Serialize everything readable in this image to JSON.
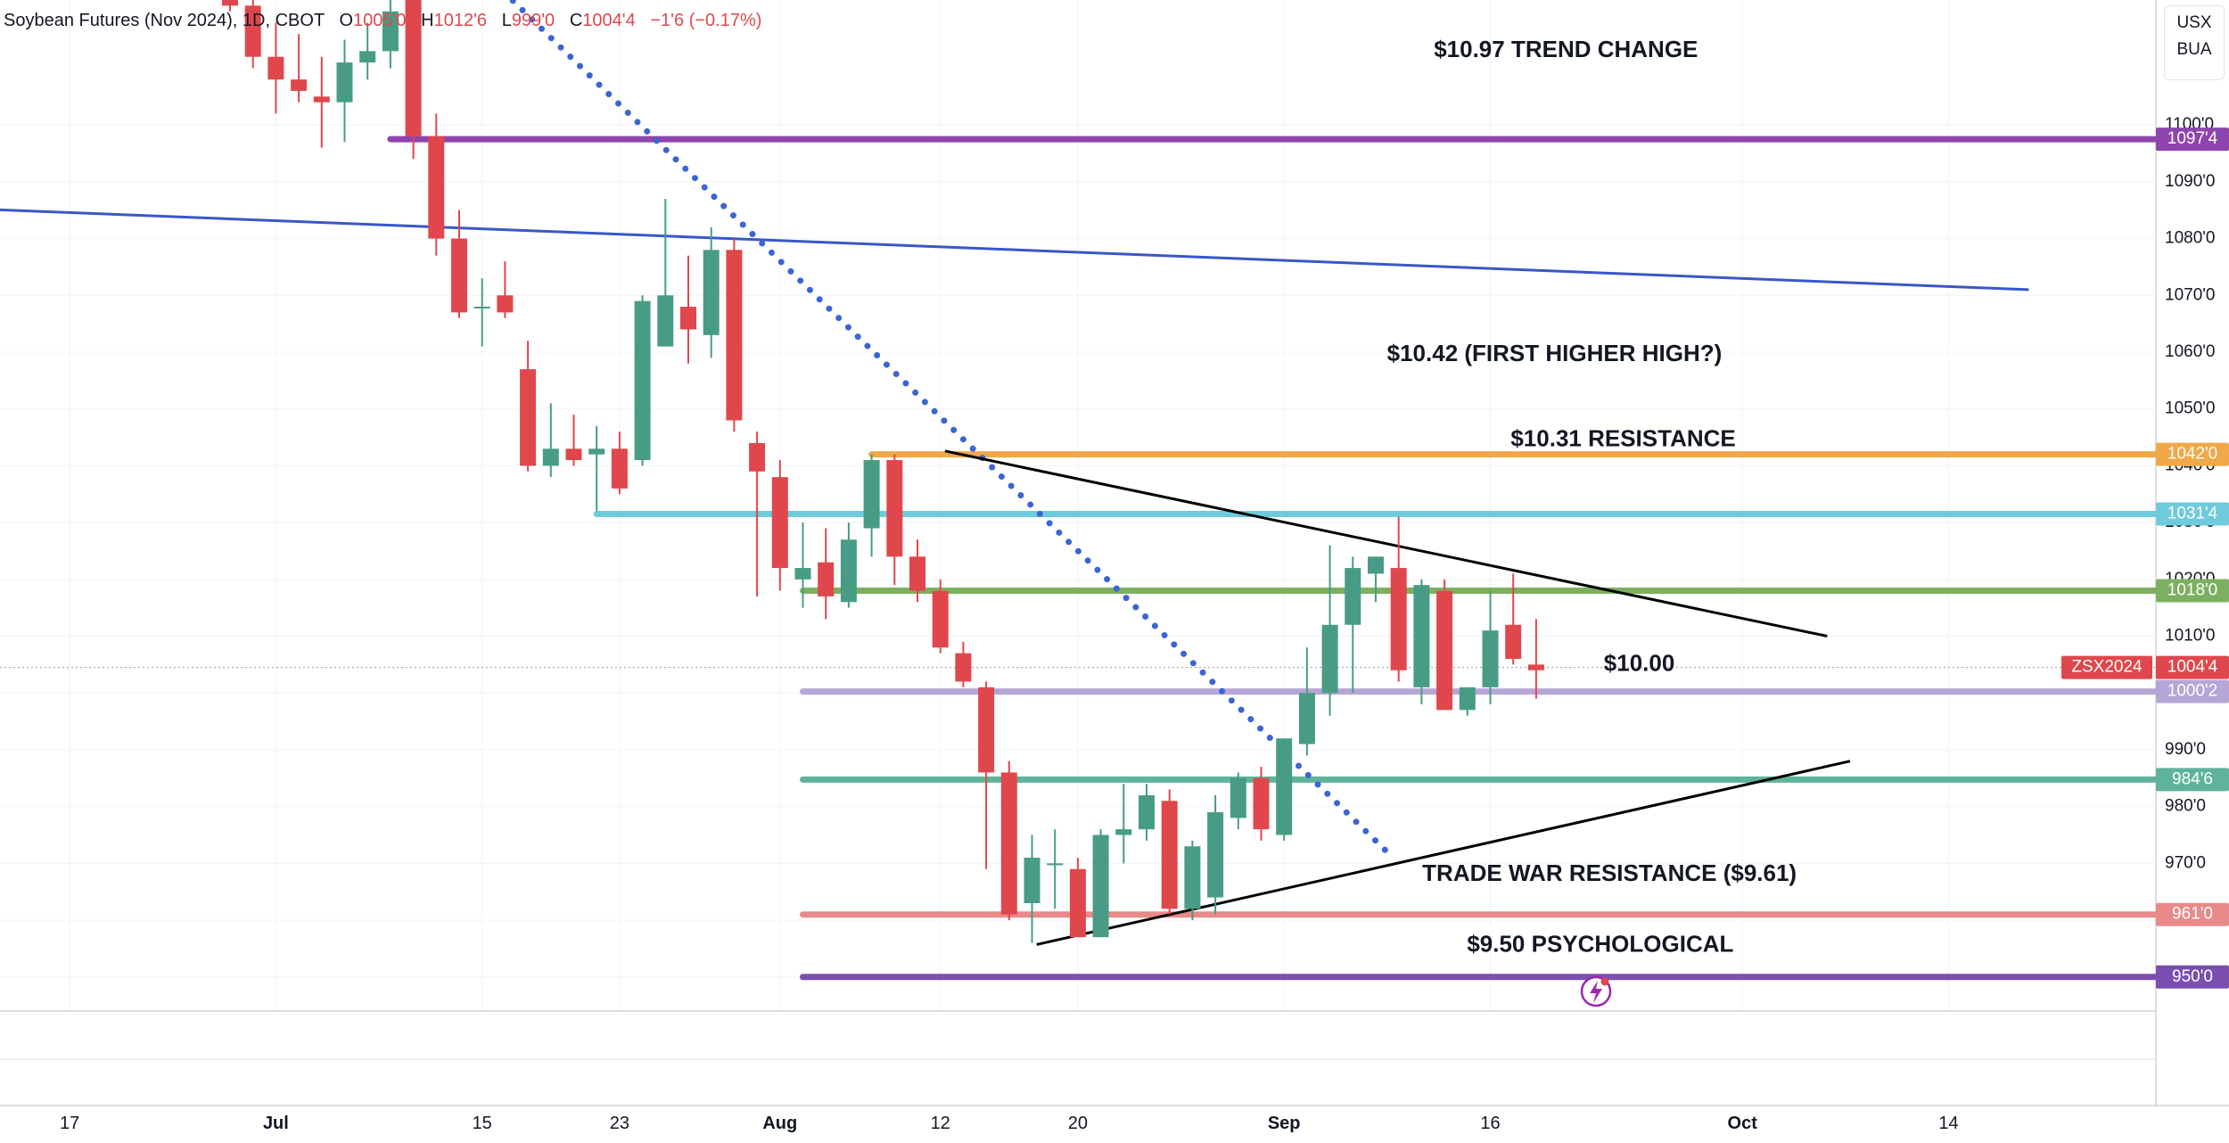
{
  "header": {
    "symbol": "Soybean Futures (Nov 2024), 1D, CBOT",
    "o_label": "O",
    "o_value": "1005'0",
    "h_label": "H",
    "h_value": "1012'6",
    "l_label": "L",
    "l_value": "999'0",
    "c_label": "C",
    "c_value": "1004'4",
    "change": "−1'6 (−0.17%)"
  },
  "top_right": {
    "currency": "USX",
    "unit": "BUA"
  },
  "colors": {
    "up": "#489c85",
    "down": "#e0474c",
    "purple_trend": "#8e44ad",
    "blue_line": "#3858c8",
    "dotted": "#3b64d4",
    "orange": "#f0a848",
    "cyan": "#6ecbdc",
    "green": "#7cb060",
    "lavender": "#b6a6d8",
    "teal": "#5fb39a",
    "salmon": "#e88a8a",
    "violet": "#7a4fb0"
  },
  "chart_data": {
    "type": "candlestick",
    "y_axis": {
      "range": [
        944,
        1122
      ],
      "ticks": [
        "950'0",
        "960'0",
        "970'0",
        "980'0",
        "990'0",
        "1000'0",
        "1010'0",
        "1020'0",
        "1030'0",
        "1040'0",
        "1050'0",
        "1060'0",
        "1070'0",
        "1080'0",
        "1090'0",
        "1100'0"
      ],
      "tick_values": [
        950,
        960,
        970,
        980,
        990,
        1000,
        1010,
        1020,
        1030,
        1040,
        1050,
        1060,
        1070,
        1080,
        1090,
        1100
      ]
    },
    "x_axis": {
      "labels": [
        "17",
        "Jul",
        "15",
        "23",
        "Aug",
        "12",
        "20",
        "Sep",
        "16",
        "Oct",
        "14"
      ],
      "label_index": [
        -7,
        2,
        11,
        17,
        24,
        31,
        37,
        46,
        55,
        66,
        75
      ]
    },
    "candles": [
      {
        "o": 1130,
        "h": 1132,
        "l": 1120,
        "c": 1121
      },
      {
        "o": 1121,
        "h": 1125,
        "l": 1110,
        "c": 1112
      },
      {
        "o": 1112,
        "h": 1118,
        "l": 1102,
        "c": 1108
      },
      {
        "o": 1108,
        "h": 1116,
        "l": 1104,
        "c": 1106
      },
      {
        "o": 1105,
        "h": 1112,
        "l": 1096,
        "c": 1104
      },
      {
        "o": 1104,
        "h": 1115,
        "l": 1097,
        "c": 1111
      },
      {
        "o": 1111,
        "h": 1118,
        "l": 1108,
        "c": 1113
      },
      {
        "o": 1113,
        "h": 1140,
        "l": 1110,
        "c": 1120
      },
      {
        "o": 1125,
        "h": 1135,
        "l": 1094,
        "c": 1098
      },
      {
        "o": 1098,
        "h": 1102,
        "l": 1077,
        "c": 1080
      },
      {
        "o": 1080,
        "h": 1085,
        "l": 1066,
        "c": 1067
      },
      {
        "o": 1068,
        "h": 1073,
        "l": 1061,
        "c": 1068
      },
      {
        "o": 1070,
        "h": 1076,
        "l": 1066,
        "c": 1067
      },
      {
        "o": 1057,
        "h": 1062,
        "l": 1039,
        "c": 1040
      },
      {
        "o": 1040,
        "h": 1051,
        "l": 1038,
        "c": 1043
      },
      {
        "o": 1043,
        "h": 1049,
        "l": 1040,
        "c": 1041
      },
      {
        "o": 1042,
        "h": 1047,
        "l": 1032,
        "c": 1043
      },
      {
        "o": 1043,
        "h": 1046,
        "l": 1035,
        "c": 1036
      },
      {
        "o": 1041,
        "h": 1070,
        "l": 1040,
        "c": 1069
      },
      {
        "o": 1061,
        "h": 1087,
        "l": 1061,
        "c": 1070
      },
      {
        "o": 1068,
        "h": 1077,
        "l": 1058,
        "c": 1064
      },
      {
        "o": 1063,
        "h": 1082,
        "l": 1059,
        "c": 1078
      },
      {
        "o": 1078,
        "h": 1080,
        "l": 1046,
        "c": 1048
      },
      {
        "o": 1044,
        "h": 1046,
        "l": 1017,
        "c": 1039
      },
      {
        "o": 1038,
        "h": 1041,
        "l": 1018,
        "c": 1022
      },
      {
        "o": 1020,
        "h": 1030,
        "l": 1015,
        "c": 1022
      },
      {
        "o": 1023,
        "h": 1029,
        "l": 1013,
        "c": 1017
      },
      {
        "o": 1016,
        "h": 1030,
        "l": 1015,
        "c": 1027
      },
      {
        "o": 1029,
        "h": 1042,
        "l": 1024,
        "c": 1041
      },
      {
        "o": 1041,
        "h": 1042,
        "l": 1019,
        "c": 1024
      },
      {
        "o": 1024,
        "h": 1027,
        "l": 1016,
        "c": 1018
      },
      {
        "o": 1018,
        "h": 1020,
        "l": 1007,
        "c": 1008
      },
      {
        "o": 1007,
        "h": 1009,
        "l": 1001,
        "c": 1002
      },
      {
        "o": 1001,
        "h": 1002,
        "l": 969,
        "c": 986
      },
      {
        "o": 986,
        "h": 988,
        "l": 960,
        "c": 961
      },
      {
        "o": 963,
        "h": 975,
        "l": 956,
        "c": 971
      },
      {
        "o": 970,
        "h": 976,
        "l": 962,
        "c": 970
      },
      {
        "o": 969,
        "h": 971,
        "l": 958,
        "c": 957
      },
      {
        "o": 957,
        "h": 976,
        "l": 957,
        "c": 975
      },
      {
        "o": 975,
        "h": 984,
        "l": 970,
        "c": 976
      },
      {
        "o": 976,
        "h": 984,
        "l": 974,
        "c": 982
      },
      {
        "o": 981,
        "h": 983,
        "l": 961,
        "c": 962
      },
      {
        "o": 962,
        "h": 974,
        "l": 960,
        "c": 973
      },
      {
        "o": 964,
        "h": 982,
        "l": 961,
        "c": 979
      },
      {
        "o": 978,
        "h": 986,
        "l": 976,
        "c": 985
      },
      {
        "o": 985,
        "h": 987,
        "l": 974,
        "c": 976
      },
      {
        "o": 975,
        "h": 992,
        "l": 974,
        "c": 992
      },
      {
        "o": 991,
        "h": 1008,
        "l": 989,
        "c": 1000
      },
      {
        "o": 1000,
        "h": 1026,
        "l": 996,
        "c": 1012
      },
      {
        "o": 1012,
        "h": 1024,
        "l": 1000,
        "c": 1022
      },
      {
        "o": 1021,
        "h": 1024,
        "l": 1016,
        "c": 1024
      },
      {
        "o": 1022,
        "h": 1031,
        "l": 1002,
        "c": 1004
      },
      {
        "o": 1001,
        "h": 1020,
        "l": 998,
        "c": 1019
      },
      {
        "o": 1018,
        "h": 1020,
        "l": 997,
        "c": 997
      },
      {
        "o": 997,
        "h": 1000,
        "l": 996,
        "c": 1001
      },
      {
        "o": 1001,
        "h": 1018,
        "l": 998,
        "c": 1011
      },
      {
        "o": 1012,
        "h": 1021,
        "l": 1005,
        "c": 1006
      },
      {
        "o": 1005,
        "h": 1013,
        "l": 999,
        "c": 1004
      }
    ],
    "horizontal_levels": [
      {
        "value": 1097.5,
        "axis_label": "1097'4",
        "color_key": "purple_trend",
        "from": 7
      },
      {
        "value": 1042,
        "axis_label": "1042'0",
        "color_key": "orange",
        "from": 28
      },
      {
        "value": 1031.5,
        "axis_label": "1031'4",
        "color_key": "cyan",
        "from": 16
      },
      {
        "value": 1018,
        "axis_label": "1018'0",
        "color_key": "green",
        "from": 25
      },
      {
        "value": 1000.25,
        "axis_label": "1000'2",
        "color_key": "lavender",
        "from": 25
      },
      {
        "value": 984.75,
        "axis_label": "984'6",
        "color_key": "teal",
        "from": 25
      },
      {
        "value": 961,
        "axis_label": "961'0",
        "color_key": "salmon",
        "from": 25
      },
      {
        "value": 950,
        "axis_label": "950'0",
        "color_key": "violet",
        "from": 25
      }
    ],
    "trend_lines": [
      {
        "x1": -16,
        "y1": 1086,
        "x2": 78.5,
        "y2": 1071,
        "color_key": "blue_line",
        "style": "solid"
      },
      {
        "x1": 9,
        "y1": 1135,
        "x2": 50.5,
        "y2": 972,
        "color_key": "dotted",
        "style": "dotted"
      },
      {
        "x1": 31.2,
        "y1": 1042.6,
        "x2": 69.7,
        "y2": 1010,
        "color_key": "black",
        "style": "solid"
      },
      {
        "x1": 35.2,
        "y1": 955.7,
        "x2": 70.7,
        "y2": 988,
        "color_key": "black",
        "style": "solid"
      }
    ],
    "last_price": {
      "value": 1004.5,
      "label": "1004'4",
      "symbol": "ZSX2024"
    },
    "annotations": [
      {
        "text": "$10.97 TREND CHANGE",
        "x": 58.3,
        "y": 1113
      },
      {
        "text": "$10.42 (FIRST HIGHER HIGH?)",
        "x": 57.8,
        "y": 1059.5
      },
      {
        "text": "$10.31 RESISTANCE",
        "x": 60.8,
        "y": 1044.5
      },
      {
        "text": "$10.00",
        "x": 61.5,
        "y": 1005
      },
      {
        "text": "TRADE WAR RESISTANCE ($9.61)",
        "x": 60.2,
        "y": 968
      },
      {
        "text": "$9.50 PSYCHOLOGICAL",
        "x": 59.8,
        "y": 955.5
      }
    ]
  }
}
